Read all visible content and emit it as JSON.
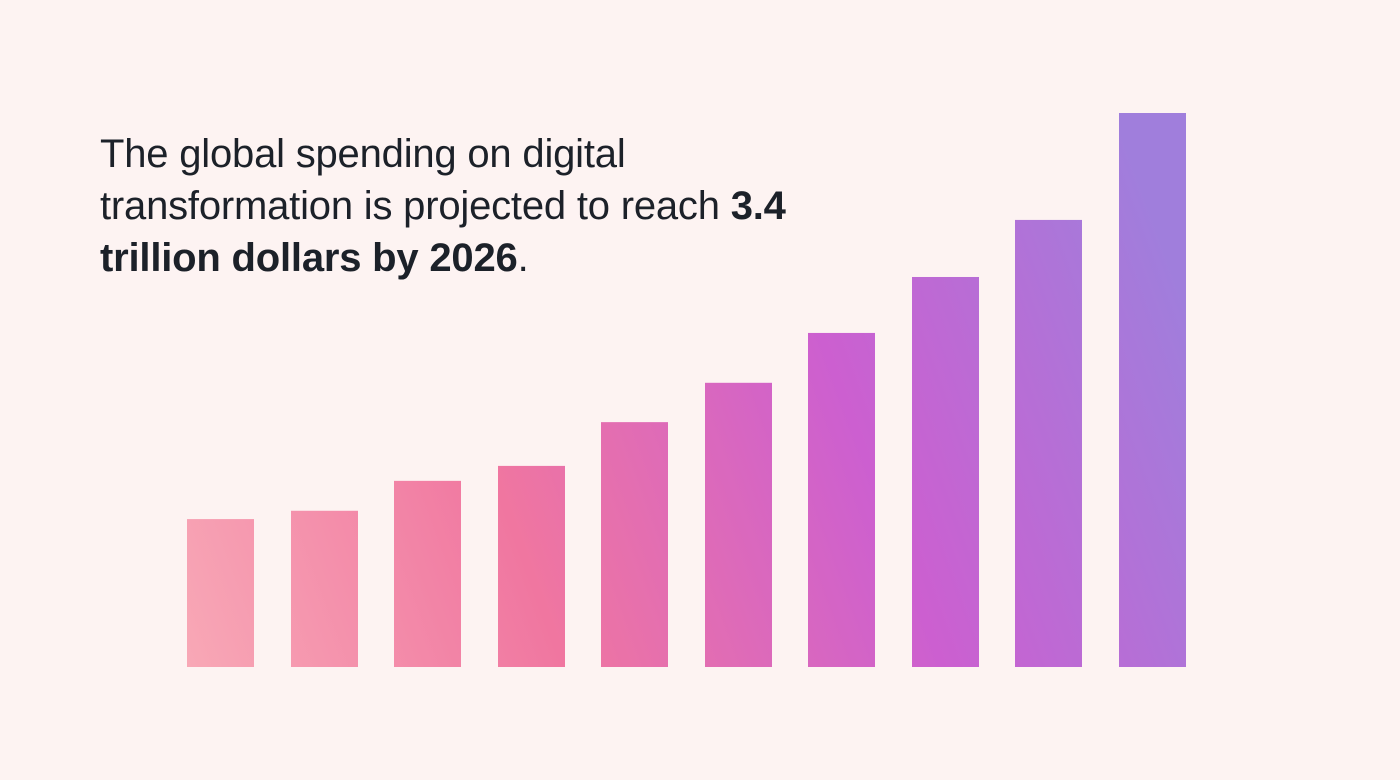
{
  "headline": {
    "prefix": "The global spending on digital transformation is projected to reach ",
    "emphasis": "3.4 trillion dollars by 2026",
    "suffix": "."
  },
  "chart_data": {
    "type": "bar",
    "title": "",
    "xlabel": "",
    "ylabel": "",
    "axes_visible": false,
    "grid": false,
    "value_scale": "relative (tallest bar = 100)",
    "values": [
      26.7,
      28.2,
      33.6,
      36.3,
      44.2,
      51.3,
      60.3,
      70.4,
      80.7,
      100
    ],
    "ylim": [
      0,
      100
    ],
    "gradient_colors": [
      "#f8a8b6",
      "#f076a0",
      "#cc5fd0",
      "#a07edc"
    ]
  }
}
